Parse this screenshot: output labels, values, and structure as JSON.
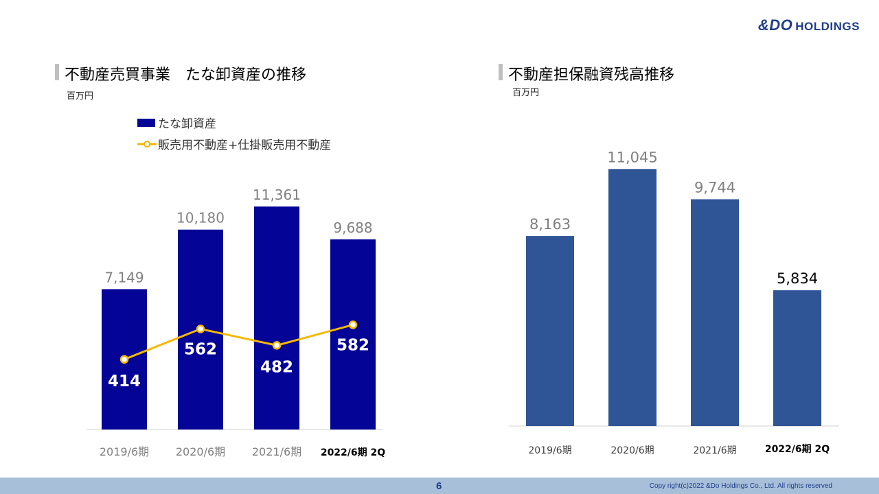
{
  "header": {
    "logo_mark": "&DO",
    "logo_rest": "HOLDINGS"
  },
  "left_panel": {
    "title": "不動産売買事業　たな卸資産の推移",
    "unit": "百万円",
    "legend": {
      "bar": "たな卸資産",
      "line": "販売用不動産+仕掛販売用不動産"
    }
  },
  "right_panel": {
    "title": "不動産担保融資残高推移",
    "unit": "百万円"
  },
  "chart_data": [
    {
      "type": "bar",
      "title": "不動産売買事業　たな卸資産の推移",
      "categories": [
        "2019/6期",
        "2020/6期",
        "2021/6期",
        "2022/6期 2Q"
      ],
      "series": [
        {
          "name": "たな卸資産",
          "type": "bar",
          "values": [
            7149,
            10180,
            11361,
            9688
          ],
          "labels": [
            "7,149",
            "10,180",
            "11,361",
            "9,688"
          ],
          "color": "#040497"
        },
        {
          "name": "販売用不動産+仕掛販売用不動産",
          "type": "line",
          "values": [
            414,
            562,
            482,
            582
          ],
          "labels": [
            "414",
            "562",
            "482",
            "582"
          ],
          "color": "#f5b800"
        }
      ],
      "ylim": [
        0,
        13000
      ],
      "grid": false
    },
    {
      "type": "bar",
      "title": "不動産担保融資残高推移",
      "categories": [
        "2019/6期",
        "2020/6期",
        "2021/6期",
        "2022/6期 2Q"
      ],
      "values": [
        8163,
        11045,
        9744,
        5834
      ],
      "labels": [
        "8,163",
        "11,045",
        "9,744",
        "5,834"
      ],
      "color": "#2f5597",
      "ylim": [
        0,
        13500
      ],
      "grid": false
    }
  ],
  "footer": {
    "page": "6",
    "copyright": "Copy right(c)2022 &Do Holdings Co., Ltd. All rights reserved"
  }
}
